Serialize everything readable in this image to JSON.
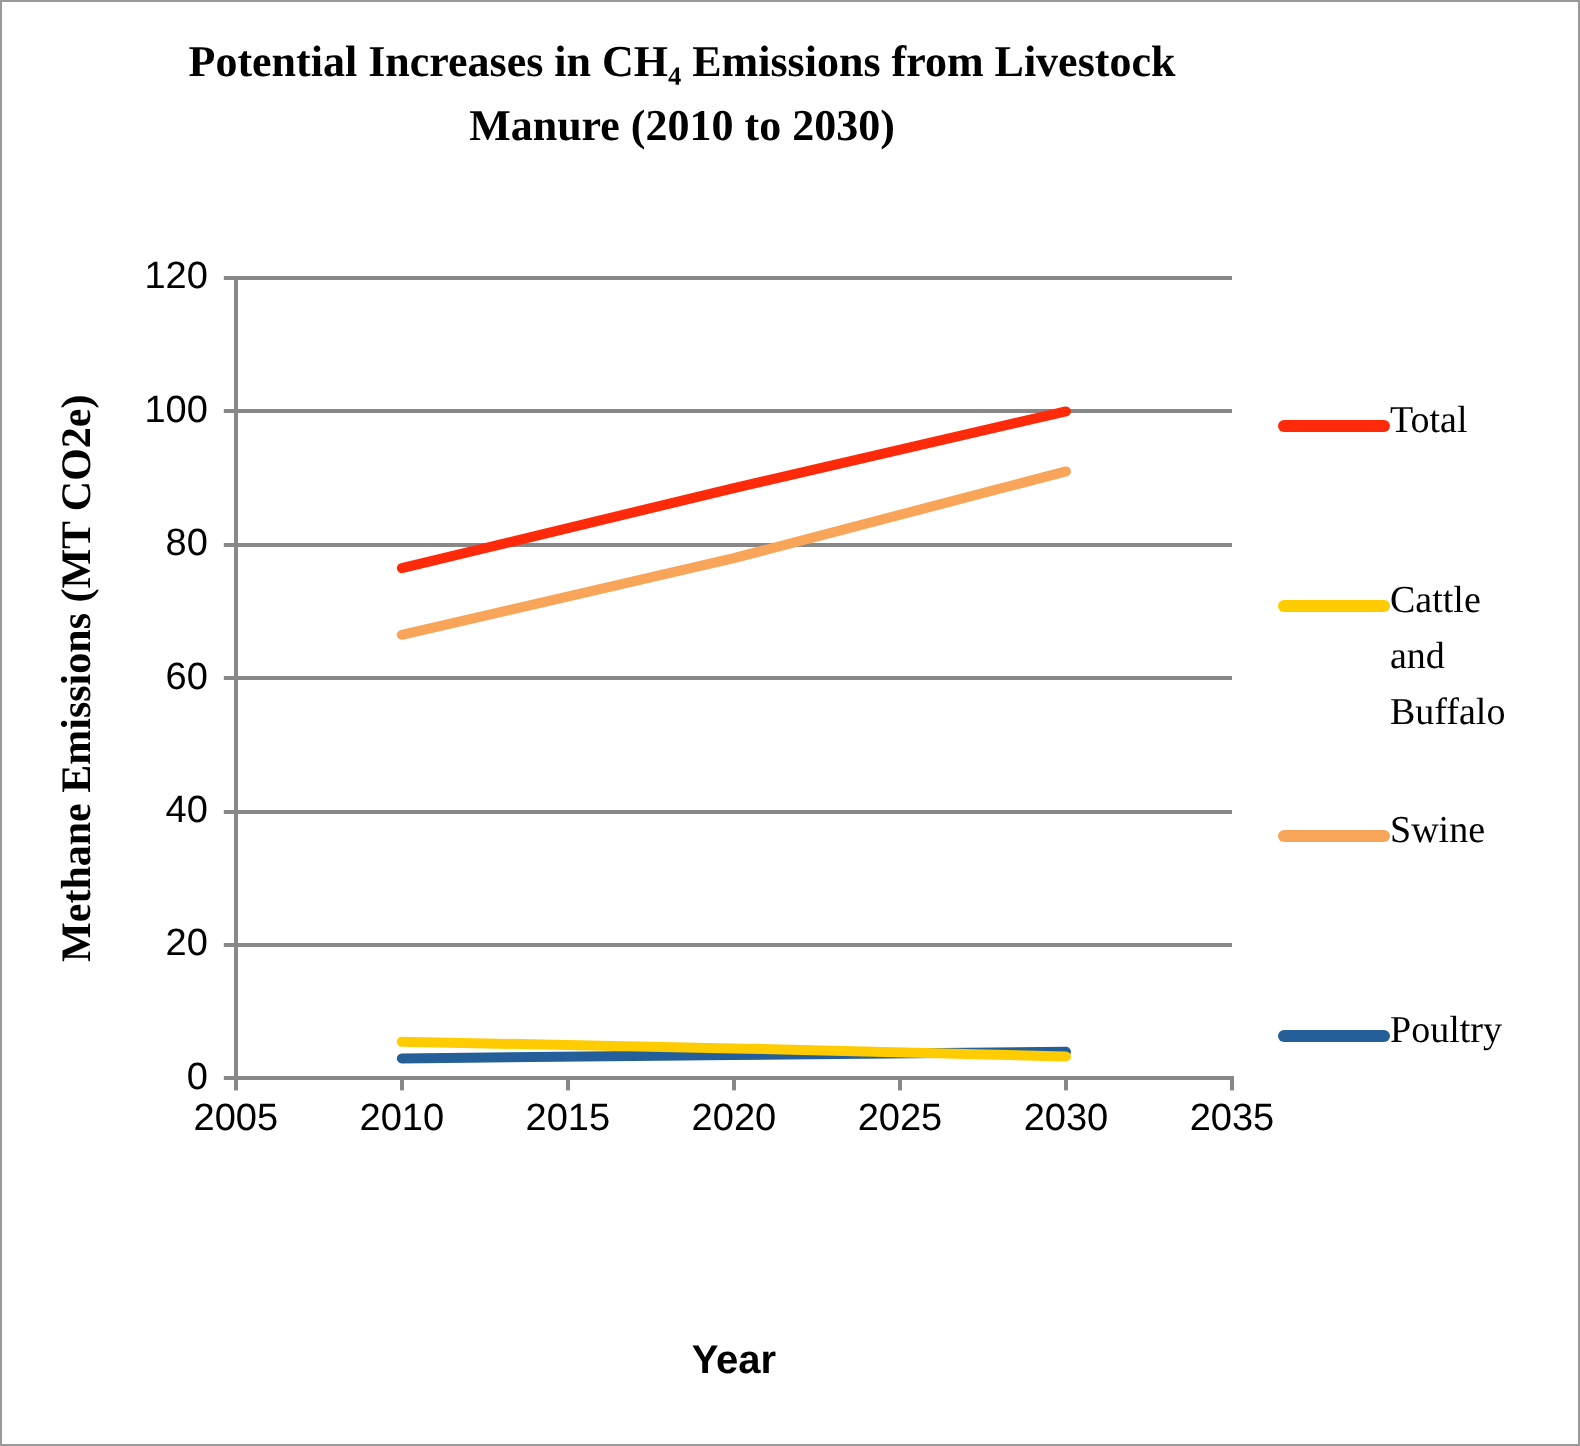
{
  "chart_data": {
    "type": "line",
    "title": "Potential Increases in CH₄ Emissions from Livestock Manure (2010 to 2030)",
    "xlabel": "Year",
    "ylabel": "Methane Emissions (MT CO2e)",
    "x": [
      2010,
      2020,
      2030
    ],
    "series": [
      {
        "name": "Total",
        "color": "#ff2a0a",
        "values": [
          76.5,
          88.5,
          100
        ]
      },
      {
        "name": "Cattle and Buffalo",
        "color": "#ffcc00",
        "values": [
          5.5,
          4.5,
          3.3
        ]
      },
      {
        "name": "Swine",
        "color": "#f8a55a",
        "values": [
          66.5,
          78,
          91
        ]
      },
      {
        "name": "Poultry",
        "color": "#255f99",
        "values": [
          3,
          3.5,
          4
        ]
      }
    ],
    "xlim": [
      2005,
      2035
    ],
    "xticks": [
      2005,
      2010,
      2015,
      2020,
      2025,
      2030,
      2035
    ],
    "ylim": [
      0,
      120
    ],
    "yticks": [
      0,
      20,
      40,
      60,
      80,
      100,
      120
    ],
    "grid": "y",
    "legend": "right",
    "marker": "none",
    "line_style": "solid"
  }
}
